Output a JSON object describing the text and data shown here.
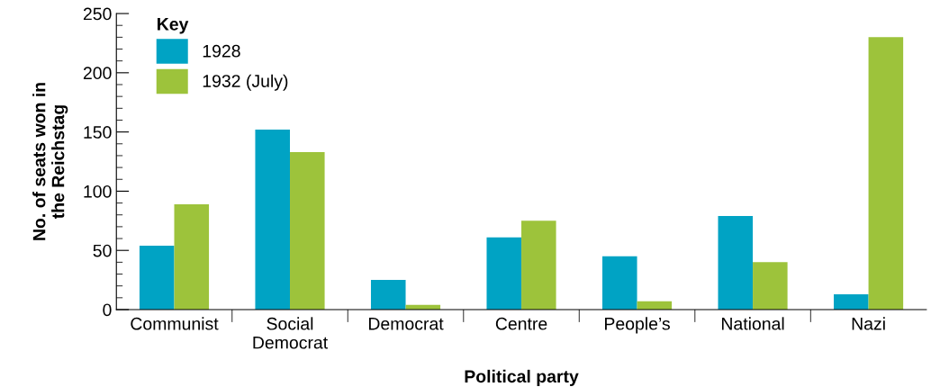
{
  "chart_data": {
    "type": "bar",
    "xlabel": "Political party",
    "ylabel": "No. of seats won in\nthe Reichstag",
    "legend_title": "Key",
    "categories": [
      "Communist",
      "Social\nDemocrat",
      "Democrat",
      "Centre",
      "People’s",
      "National",
      "Nazi"
    ],
    "series": [
      {
        "name": "1928",
        "color": "#00a3c4",
        "values": [
          54,
          152,
          25,
          61,
          45,
          79,
          13
        ]
      },
      {
        "name": "1932 (July)",
        "color": "#9dc33b",
        "values": [
          89,
          133,
          4,
          75,
          7,
          40,
          230
        ]
      }
    ],
    "ylim": [
      0,
      250
    ],
    "yticks": [
      0,
      {
        "value": 10,
        "label": null
      },
      {
        "value": 20,
        "label": null
      },
      {
        "value": 30,
        "label": null
      },
      {
        "value": 40,
        "label": null
      },
      50,
      {
        "value": 60,
        "label": null
      },
      {
        "value": 70,
        "label": null
      },
      {
        "value": 80,
        "label": null
      },
      {
        "value": 90,
        "label": null
      },
      100,
      {
        "value": 110,
        "label": null
      },
      {
        "value": 120,
        "label": null
      },
      {
        "value": 130,
        "label": null
      },
      {
        "value": 140,
        "label": null
      },
      150,
      {
        "value": 160,
        "label": null
      },
      {
        "value": 170,
        "label": null
      },
      {
        "value": 180,
        "label": null
      },
      {
        "value": 190,
        "label": null
      },
      200,
      {
        "value": 210,
        "label": null
      },
      {
        "value": 220,
        "label": null
      },
      {
        "value": 230,
        "label": null
      },
      {
        "value": 240,
        "label": null
      },
      250
    ],
    "grid": false,
    "legend": "top left"
  }
}
